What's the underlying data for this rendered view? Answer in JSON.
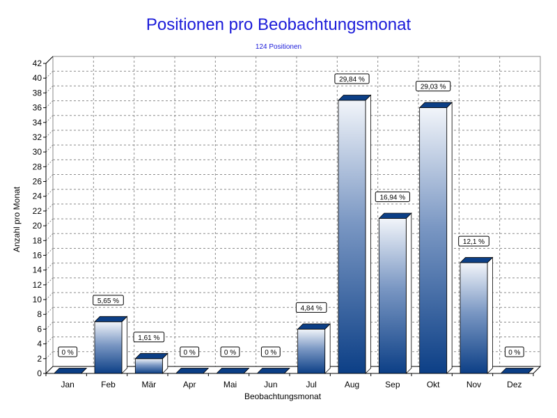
{
  "chart_data": {
    "type": "bar",
    "title": "Positionen pro Beobachtungsmonat",
    "subtitle": "124 Positionen",
    "xlabel": "Beobachtungsmonat",
    "ylabel": "Anzahl pro Monat",
    "categories": [
      "Jan",
      "Feb",
      "Mär",
      "Apr",
      "Mai",
      "Jun",
      "Jul",
      "Aug",
      "Sep",
      "Okt",
      "Nov",
      "Dez"
    ],
    "values": [
      0,
      7,
      2,
      0,
      0,
      0,
      6,
      37,
      21,
      36,
      15,
      0
    ],
    "data_labels": [
      "0 %",
      "5,65 %",
      "1,61 %",
      "0 %",
      "0 %",
      "0 %",
      "4,84 %",
      "29,84 %",
      "16,94 %",
      "29,03 %",
      "12,1 %",
      "0 %"
    ],
    "ylim": [
      0,
      42
    ],
    "yticks": [
      0,
      2,
      4,
      6,
      8,
      10,
      12,
      14,
      16,
      18,
      20,
      22,
      24,
      26,
      28,
      30,
      32,
      34,
      36,
      38,
      40,
      42
    ],
    "grid": true,
    "bar_color_top": "#f2f5fa",
    "bar_color_bottom": "#0c3f86"
  }
}
